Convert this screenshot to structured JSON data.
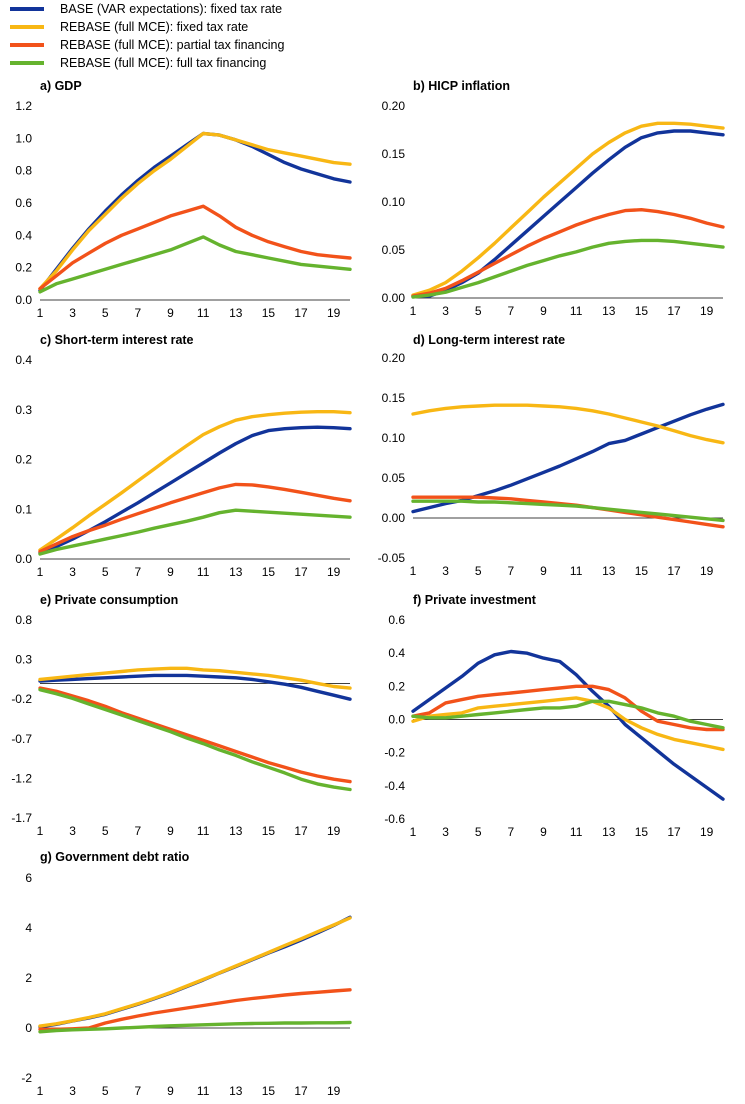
{
  "legend": [
    {
      "label": "BASE (VAR expectations): fixed tax rate",
      "color": "#12349a"
    },
    {
      "label": "REBASE (full MCE): fixed tax rate",
      "color": "#f8b714"
    },
    {
      "label": "REBASE (full MCE): partial tax financing",
      "color": "#f2521a"
    },
    {
      "label": "REBASE (full MCE): full tax financing",
      "color": "#65b32e"
    }
  ],
  "chart_data": [
    {
      "type": "line",
      "title": "a) GDP",
      "x": [
        1,
        2,
        3,
        4,
        5,
        6,
        7,
        8,
        9,
        10,
        11,
        12,
        13,
        14,
        15,
        16,
        17,
        18,
        19,
        20
      ],
      "xticks": [
        "1",
        "3",
        "5",
        "7",
        "9",
        "11",
        "13",
        "15",
        "17",
        "19"
      ],
      "ylim": [
        0,
        1.2
      ],
      "yticks": [
        "0.0",
        "0.2",
        "0.4",
        "0.6",
        "0.8",
        "1.0",
        "1.2"
      ],
      "series": [
        {
          "name": "BASE (VAR expectations): fixed tax rate",
          "color": "#12349a",
          "values": [
            0.06,
            0.19,
            0.32,
            0.44,
            0.55,
            0.65,
            0.74,
            0.82,
            0.89,
            0.96,
            1.03,
            1.02,
            0.99,
            0.95,
            0.9,
            0.85,
            0.81,
            0.78,
            0.75,
            0.73
          ]
        },
        {
          "name": "REBASE (full MCE): fixed tax rate",
          "color": "#f8b714",
          "values": [
            0.07,
            0.18,
            0.31,
            0.43,
            0.53,
            0.63,
            0.72,
            0.8,
            0.87,
            0.95,
            1.03,
            1.02,
            0.99,
            0.96,
            0.93,
            0.91,
            0.89,
            0.87,
            0.85,
            0.84
          ]
        },
        {
          "name": "REBASE (full MCE): partial tax financing",
          "color": "#f2521a",
          "values": [
            0.07,
            0.15,
            0.23,
            0.29,
            0.35,
            0.4,
            0.44,
            0.48,
            0.52,
            0.55,
            0.58,
            0.52,
            0.45,
            0.4,
            0.36,
            0.33,
            0.3,
            0.28,
            0.27,
            0.26
          ]
        },
        {
          "name": "REBASE (full MCE): full tax financing",
          "color": "#65b32e",
          "values": [
            0.05,
            0.1,
            0.13,
            0.16,
            0.19,
            0.22,
            0.25,
            0.28,
            0.31,
            0.35,
            0.39,
            0.34,
            0.3,
            0.28,
            0.26,
            0.24,
            0.22,
            0.21,
            0.2,
            0.19
          ]
        }
      ]
    },
    {
      "type": "line",
      "title": "b) HICP inflation",
      "x": [
        1,
        2,
        3,
        4,
        5,
        6,
        7,
        8,
        9,
        10,
        11,
        12,
        13,
        14,
        15,
        16,
        17,
        18,
        19,
        20
      ],
      "xticks": [
        "1",
        "3",
        "5",
        "7",
        "9",
        "11",
        "13",
        "15",
        "17",
        "19"
      ],
      "ylim": [
        0,
        0.2
      ],
      "yticks": [
        "0.00",
        "0.05",
        "0.10",
        "0.15",
        "0.20"
      ],
      "series": [
        {
          "name": "BASE (VAR expectations): fixed tax rate",
          "color": "#12349a",
          "values": [
            0.002,
            0.002,
            0.008,
            0.016,
            0.026,
            0.04,
            0.055,
            0.07,
            0.085,
            0.1,
            0.115,
            0.13,
            0.144,
            0.157,
            0.167,
            0.172,
            0.174,
            0.174,
            0.172,
            0.17
          ]
        },
        {
          "name": "REBASE (full MCE): fixed tax rate",
          "color": "#f8b714",
          "values": [
            0.003,
            0.008,
            0.016,
            0.028,
            0.042,
            0.057,
            0.073,
            0.089,
            0.105,
            0.12,
            0.135,
            0.15,
            0.162,
            0.172,
            0.179,
            0.182,
            0.182,
            0.181,
            0.179,
            0.177
          ]
        },
        {
          "name": "REBASE (full MCE): partial tax financing",
          "color": "#f2521a",
          "values": [
            0.002,
            0.005,
            0.01,
            0.018,
            0.027,
            0.036,
            0.045,
            0.054,
            0.062,
            0.069,
            0.076,
            0.082,
            0.087,
            0.091,
            0.092,
            0.09,
            0.087,
            0.083,
            0.078,
            0.074
          ]
        },
        {
          "name": "REBASE (full MCE): full tax financing",
          "color": "#65b32e",
          "values": [
            0.001,
            0.003,
            0.006,
            0.011,
            0.016,
            0.022,
            0.028,
            0.034,
            0.039,
            0.044,
            0.048,
            0.053,
            0.057,
            0.059,
            0.06,
            0.06,
            0.059,
            0.057,
            0.055,
            0.053
          ]
        }
      ]
    },
    {
      "type": "line",
      "title": "c) Short-term interest rate",
      "x": [
        1,
        2,
        3,
        4,
        5,
        6,
        7,
        8,
        9,
        10,
        11,
        12,
        13,
        14,
        15,
        16,
        17,
        18,
        19,
        20
      ],
      "xticks": [
        "1",
        "3",
        "5",
        "7",
        "9",
        "11",
        "13",
        "15",
        "17",
        "19"
      ],
      "ylim": [
        0,
        0.4
      ],
      "yticks": [
        "0.0",
        "0.1",
        "0.2",
        "0.3",
        "0.4"
      ],
      "series": [
        {
          "name": "BASE (VAR expectations): fixed tax rate",
          "color": "#12349a",
          "values": [
            0.012,
            0.025,
            0.04,
            0.057,
            0.075,
            0.094,
            0.113,
            0.133,
            0.153,
            0.173,
            0.193,
            0.213,
            0.232,
            0.248,
            0.258,
            0.262,
            0.264,
            0.265,
            0.264,
            0.262
          ]
        },
        {
          "name": "REBASE (full MCE): fixed tax rate",
          "color": "#f8b714",
          "values": [
            0.018,
            0.04,
            0.063,
            0.087,
            0.11,
            0.133,
            0.157,
            0.181,
            0.205,
            0.228,
            0.25,
            0.266,
            0.279,
            0.286,
            0.29,
            0.293,
            0.295,
            0.296,
            0.296,
            0.294
          ]
        },
        {
          "name": "REBASE (full MCE): partial tax financing",
          "color": "#f2521a",
          "values": [
            0.015,
            0.03,
            0.045,
            0.057,
            0.068,
            0.08,
            0.091,
            0.102,
            0.113,
            0.123,
            0.133,
            0.143,
            0.15,
            0.149,
            0.145,
            0.14,
            0.134,
            0.128,
            0.122,
            0.117
          ]
        },
        {
          "name": "REBASE (full MCE): full tax financing",
          "color": "#65b32e",
          "values": [
            0.01,
            0.019,
            0.026,
            0.033,
            0.04,
            0.047,
            0.054,
            0.062,
            0.069,
            0.076,
            0.084,
            0.093,
            0.098,
            0.096,
            0.094,
            0.092,
            0.09,
            0.088,
            0.086,
            0.084
          ]
        }
      ]
    },
    {
      "type": "line",
      "title": "d) Long-term interest rate",
      "x": [
        1,
        2,
        3,
        4,
        5,
        6,
        7,
        8,
        9,
        10,
        11,
        12,
        13,
        14,
        15,
        16,
        17,
        18,
        19,
        20
      ],
      "xticks": [
        "1",
        "3",
        "5",
        "7",
        "9",
        "11",
        "13",
        "15",
        "17",
        "19"
      ],
      "ylim": [
        -0.05,
        0.2
      ],
      "yticks": [
        "-0.05",
        "0.00",
        "0.05",
        "0.10",
        "0.15",
        "0.20"
      ],
      "series": [
        {
          "name": "BASE (VAR expectations): fixed tax rate",
          "color": "#12349a",
          "values": [
            0.008,
            0.013,
            0.018,
            0.022,
            0.028,
            0.034,
            0.041,
            0.049,
            0.057,
            0.065,
            0.074,
            0.083,
            0.093,
            0.097,
            0.105,
            0.113,
            0.121,
            0.129,
            0.136,
            0.142
          ]
        },
        {
          "name": "REBASE (full MCE): fixed tax rate",
          "color": "#f8b714",
          "values": [
            0.13,
            0.134,
            0.137,
            0.139,
            0.14,
            0.141,
            0.141,
            0.141,
            0.14,
            0.139,
            0.137,
            0.134,
            0.13,
            0.125,
            0.12,
            0.115,
            0.109,
            0.103,
            0.098,
            0.094
          ]
        },
        {
          "name": "REBASE (full MCE): partial tax financing",
          "color": "#f2521a",
          "values": [
            0.026,
            0.026,
            0.026,
            0.026,
            0.026,
            0.025,
            0.024,
            0.022,
            0.02,
            0.018,
            0.016,
            0.013,
            0.01,
            0.007,
            0.004,
            0.001,
            -0.002,
            -0.005,
            -0.008,
            -0.011
          ]
        },
        {
          "name": "REBASE (full MCE): full tax financing",
          "color": "#65b32e",
          "values": [
            0.021,
            0.021,
            0.021,
            0.021,
            0.02,
            0.02,
            0.019,
            0.018,
            0.017,
            0.016,
            0.015,
            0.013,
            0.011,
            0.009,
            0.007,
            0.005,
            0.003,
            0.001,
            -0.001,
            -0.003
          ]
        }
      ]
    },
    {
      "type": "line",
      "title": "e) Private consumption",
      "x": [
        1,
        2,
        3,
        4,
        5,
        6,
        7,
        8,
        9,
        10,
        11,
        12,
        13,
        14,
        15,
        16,
        17,
        18,
        19,
        20
      ],
      "xticks": [
        "1",
        "3",
        "5",
        "7",
        "9",
        "11",
        "13",
        "15",
        "17",
        "19"
      ],
      "ylim": [
        -1.7,
        0.8
      ],
      "yticks": [
        "-1.7",
        "-1.2",
        "-0.7",
        "-0.2",
        "0.3",
        "0.8"
      ],
      "series": [
        {
          "name": "BASE (VAR expectations): fixed tax rate",
          "color": "#12349a",
          "values": [
            0.03,
            0.04,
            0.05,
            0.06,
            0.07,
            0.08,
            0.09,
            0.1,
            0.1,
            0.1,
            0.09,
            0.08,
            0.07,
            0.05,
            0.02,
            -0.01,
            -0.05,
            -0.1,
            -0.15,
            -0.2
          ]
        },
        {
          "name": "REBASE (full MCE): fixed tax rate",
          "color": "#f8b714",
          "values": [
            0.05,
            0.07,
            0.09,
            0.11,
            0.13,
            0.15,
            0.17,
            0.18,
            0.19,
            0.19,
            0.17,
            0.16,
            0.14,
            0.12,
            0.1,
            0.07,
            0.04,
            0.0,
            -0.04,
            -0.06
          ]
        },
        {
          "name": "REBASE (full MCE): partial tax financing",
          "color": "#f2521a",
          "values": [
            -0.06,
            -0.1,
            -0.16,
            -0.22,
            -0.29,
            -0.37,
            -0.44,
            -0.51,
            -0.58,
            -0.65,
            -0.72,
            -0.79,
            -0.86,
            -0.93,
            -1.0,
            -1.06,
            -1.12,
            -1.17,
            -1.21,
            -1.24
          ]
        },
        {
          "name": "REBASE (full MCE): full tax financing",
          "color": "#65b32e",
          "values": [
            -0.08,
            -0.13,
            -0.19,
            -0.26,
            -0.33,
            -0.4,
            -0.47,
            -0.54,
            -0.61,
            -0.69,
            -0.76,
            -0.84,
            -0.91,
            -0.99,
            -1.06,
            -1.13,
            -1.21,
            -1.27,
            -1.31,
            -1.34
          ]
        }
      ]
    },
    {
      "type": "line",
      "title": "f) Private investment",
      "x": [
        1,
        2,
        3,
        4,
        5,
        6,
        7,
        8,
        9,
        10,
        11,
        12,
        13,
        14,
        15,
        16,
        17,
        18,
        19,
        20
      ],
      "xticks": [
        "1",
        "3",
        "5",
        "7",
        "9",
        "11",
        "13",
        "15",
        "17",
        "19"
      ],
      "ylim": [
        -0.6,
        0.6
      ],
      "yticks": [
        "-0.6",
        "-0.4",
        "-0.2",
        "0.0",
        "0.2",
        "0.4",
        "0.6"
      ],
      "series": [
        {
          "name": "BASE (VAR expectations): fixed tax rate",
          "color": "#12349a",
          "values": [
            0.05,
            0.12,
            0.19,
            0.26,
            0.34,
            0.39,
            0.41,
            0.4,
            0.37,
            0.35,
            0.27,
            0.17,
            0.08,
            -0.03,
            -0.11,
            -0.19,
            -0.27,
            -0.34,
            -0.41,
            -0.48
          ]
        },
        {
          "name": "REBASE (full MCE): fixed tax rate",
          "color": "#f8b714",
          "values": [
            -0.01,
            0.02,
            0.03,
            0.04,
            0.07,
            0.08,
            0.09,
            0.1,
            0.11,
            0.12,
            0.13,
            0.11,
            0.07,
            0.0,
            -0.05,
            -0.09,
            -0.12,
            -0.14,
            -0.16,
            -0.18
          ]
        },
        {
          "name": "REBASE (full MCE): partial tax financing",
          "color": "#f2521a",
          "values": [
            0.02,
            0.04,
            0.1,
            0.12,
            0.14,
            0.15,
            0.16,
            0.17,
            0.18,
            0.19,
            0.2,
            0.2,
            0.18,
            0.13,
            0.05,
            -0.01,
            -0.03,
            -0.05,
            -0.06,
            -0.06
          ]
        },
        {
          "name": "REBASE (full MCE): full tax financing",
          "color": "#65b32e",
          "values": [
            0.02,
            0.01,
            0.01,
            0.02,
            0.03,
            0.04,
            0.05,
            0.06,
            0.07,
            0.07,
            0.08,
            0.11,
            0.11,
            0.09,
            0.07,
            0.04,
            0.02,
            -0.01,
            -0.03,
            -0.05
          ]
        }
      ]
    },
    {
      "type": "line",
      "title": "g) Government debt ratio",
      "x": [
        1,
        2,
        3,
        4,
        5,
        6,
        7,
        8,
        9,
        10,
        11,
        12,
        13,
        14,
        15,
        16,
        17,
        18,
        19,
        20
      ],
      "xticks": [
        "1",
        "3",
        "5",
        "7",
        "9",
        "11",
        "13",
        "15",
        "17",
        "19"
      ],
      "ylim": [
        -2,
        6
      ],
      "yticks": [
        "-2",
        "0",
        "2",
        "4",
        "6"
      ],
      "series": [
        {
          "name": "BASE (VAR expectations): fixed tax rate",
          "color": "#12349a",
          "values": [
            0.05,
            0.15,
            0.28,
            0.4,
            0.55,
            0.75,
            0.95,
            1.17,
            1.4,
            1.66,
            1.92,
            2.2,
            2.46,
            2.73,
            3.0,
            3.25,
            3.52,
            3.8,
            4.1,
            4.43
          ]
        },
        {
          "name": "REBASE (full MCE): fixed tax rate",
          "color": "#f8b714",
          "values": [
            0.08,
            0.17,
            0.29,
            0.42,
            0.57,
            0.77,
            0.97,
            1.19,
            1.42,
            1.68,
            1.94,
            2.21,
            2.48,
            2.75,
            3.02,
            3.3,
            3.57,
            3.85,
            4.12,
            4.4
          ]
        },
        {
          "name": "REBASE (full MCE): partial tax financing",
          "color": "#f2521a",
          "values": [
            -0.05,
            -0.05,
            -0.03,
            0.0,
            0.2,
            0.35,
            0.48,
            0.6,
            0.7,
            0.8,
            0.9,
            1.0,
            1.1,
            1.18,
            1.25,
            1.32,
            1.38,
            1.43,
            1.48,
            1.53
          ]
        },
        {
          "name": "REBASE (full MCE): full tax financing",
          "color": "#65b32e",
          "values": [
            -0.15,
            -0.1,
            -0.07,
            -0.05,
            -0.03,
            0.0,
            0.03,
            0.06,
            0.09,
            0.11,
            0.13,
            0.15,
            0.17,
            0.18,
            0.19,
            0.2,
            0.2,
            0.21,
            0.21,
            0.22
          ]
        }
      ]
    }
  ]
}
